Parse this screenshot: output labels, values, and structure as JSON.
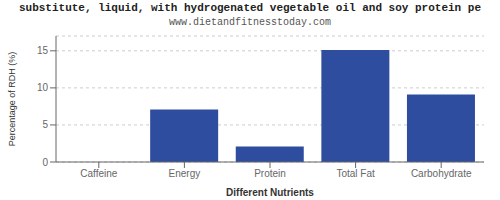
{
  "chart_data": {
    "type": "bar",
    "title": "substitute, liquid, with hydrogenated vegetable oil and soy protein pe",
    "subtitle": "www.dietandfitnesstoday.com",
    "categories": [
      "Caffeine",
      "Energy",
      "Protein",
      "Total Fat",
      "Carbohydrate"
    ],
    "values": [
      0,
      7.1,
      2.1,
      15.1,
      9.1
    ],
    "color": "#2e4d9e",
    "xlabel": "Different Nutrients",
    "ylabel": "Percentage of RDH (%)",
    "ylim": [
      0,
      17
    ],
    "yticks": [
      0,
      5,
      10,
      15
    ],
    "grid": true
  }
}
